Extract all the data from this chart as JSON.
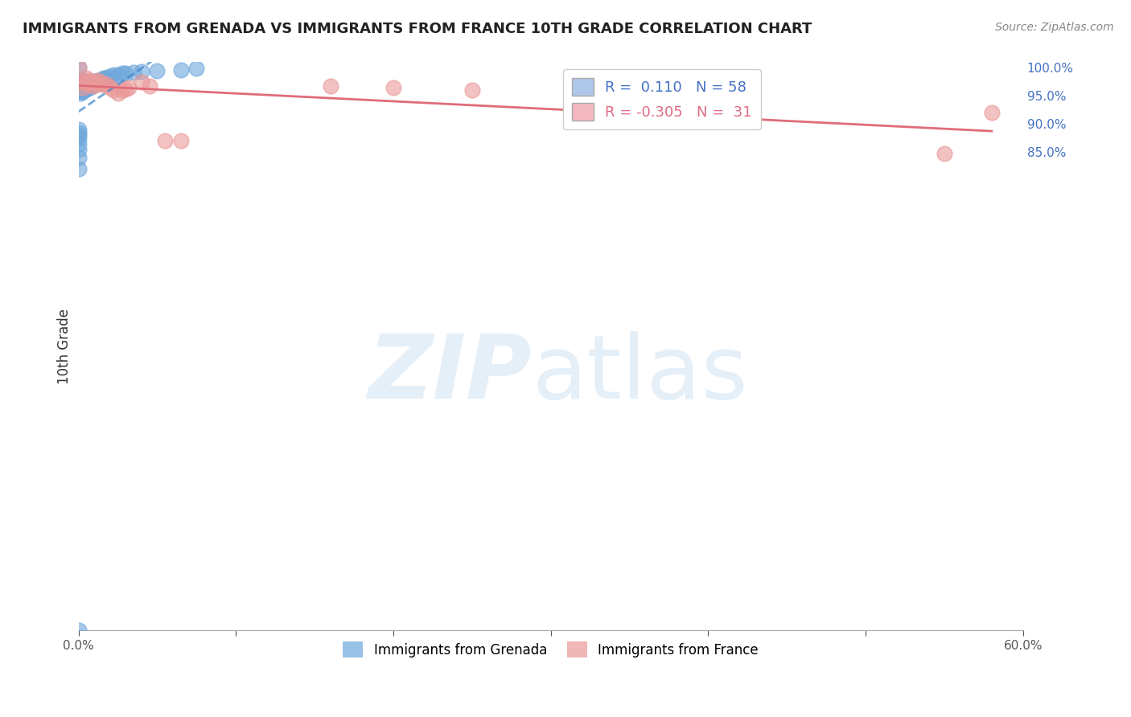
{
  "title": "IMMIGRANTS FROM GRENADA VS IMMIGRANTS FROM FRANCE 10TH GRADE CORRELATION CHART",
  "source": "Source: ZipAtlas.com",
  "ylabel": "10th Grade",
  "xlim": [
    0.0,
    0.6
  ],
  "ylim": [
    0.0,
    1.01
  ],
  "grenada_R": 0.11,
  "grenada_N": 58,
  "france_R": -0.305,
  "france_N": 31,
  "grenada_color": "#6fa8dc",
  "france_color": "#ea9999",
  "grenada_line_color": "#3d85c8",
  "france_line_color": "#e06c7a",
  "grenada_x": [
    0.0,
    0.0,
    0.0,
    0.0,
    0.0,
    0.0,
    0.0,
    0.0,
    0.0,
    0.0,
    0.001,
    0.001,
    0.001,
    0.001,
    0.001,
    0.001,
    0.002,
    0.002,
    0.002,
    0.002,
    0.002,
    0.003,
    0.003,
    0.003,
    0.003,
    0.004,
    0.004,
    0.004,
    0.005,
    0.005,
    0.005,
    0.006,
    0.006,
    0.007,
    0.007,
    0.008,
    0.008,
    0.009,
    0.009,
    0.01,
    0.01,
    0.011,
    0.012,
    0.013,
    0.014,
    0.015,
    0.016,
    0.018,
    0.02,
    0.022,
    0.025,
    0.028,
    0.03,
    0.035,
    0.04,
    0.05,
    0.065,
    0.075
  ],
  "grenada_y": [
    0.0,
    0.82,
    0.84,
    0.855,
    0.865,
    0.875,
    0.88,
    0.885,
    0.89,
    1.0,
    0.955,
    0.958,
    0.963,
    0.968,
    0.975,
    0.98,
    0.96,
    0.963,
    0.968,
    0.972,
    0.978,
    0.958,
    0.963,
    0.97,
    0.978,
    0.96,
    0.965,
    0.973,
    0.962,
    0.968,
    0.975,
    0.963,
    0.972,
    0.965,
    0.973,
    0.967,
    0.974,
    0.968,
    0.976,
    0.97,
    0.977,
    0.972,
    0.975,
    0.978,
    0.977,
    0.98,
    0.982,
    0.983,
    0.985,
    0.988,
    0.988,
    0.99,
    0.99,
    0.992,
    0.993,
    0.995,
    0.997,
    0.999
  ],
  "france_x": [
    0.0,
    0.002,
    0.003,
    0.003,
    0.005,
    0.006,
    0.007,
    0.008,
    0.009,
    0.01,
    0.011,
    0.012,
    0.013,
    0.014,
    0.016,
    0.018,
    0.02,
    0.022,
    0.025,
    0.028,
    0.03,
    0.032,
    0.04,
    0.045,
    0.055,
    0.065,
    0.16,
    0.2,
    0.25,
    0.55,
    0.58
  ],
  "france_y": [
    1.0,
    0.975,
    0.975,
    0.965,
    0.982,
    0.972,
    0.978,
    0.975,
    0.968,
    0.972,
    0.975,
    0.978,
    0.97,
    0.975,
    0.97,
    0.97,
    0.965,
    0.96,
    0.955,
    0.96,
    0.962,
    0.965,
    0.975,
    0.968,
    0.87,
    0.87,
    0.968,
    0.965,
    0.96,
    0.848,
    0.92
  ],
  "right_yticks": [
    0.85,
    0.9,
    0.95,
    1.0
  ],
  "right_yticklabels": [
    "85.0%",
    "90.0%",
    "95.0%",
    "100.0%"
  ]
}
